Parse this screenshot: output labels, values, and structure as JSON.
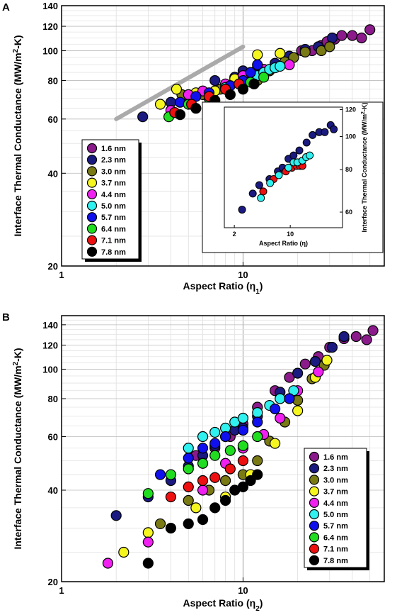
{
  "colors": {
    "1.6 nm": "#8b1a8b",
    "2.3 nm": "#1a1a80",
    "3.0 nm": "#7a7a14",
    "3.7 nm": "#f5f520",
    "4.4 nm": "#f020f0",
    "5.0 nm": "#30f0f0",
    "5.7 nm": "#1010ee",
    "6.4 nm": "#20dd20",
    "7.1 nm": "#ee1010",
    "7.8 nm": "#000000",
    "trend_line": "#aaaaaa"
  },
  "chart_data": [
    {
      "type": "scatter",
      "panel": "A",
      "xlabel": "Aspect Ratio (η",
      "xlabel_sub": "1",
      "xlabel_end": ")",
      "ylabel": "Interface Thermal Conductance (MW/m",
      "ylabel_sup": "2",
      "ylabel_end": "-K)",
      "x_scale": "log",
      "y_scale": "log",
      "xlim": [
        1,
        60
      ],
      "ylim": [
        20,
        140
      ],
      "x_ticks": [
        1,
        10
      ],
      "x_tick_labels": [
        "1",
        "10"
      ],
      "y_ticks": [
        20,
        40,
        60,
        80,
        100,
        120,
        140
      ],
      "y_tick_labels": [
        "20",
        "40",
        "60",
        "80",
        "100",
        "120",
        "140"
      ],
      "grid": true,
      "legend_position": "middle-left",
      "legend": [
        "1.6 nm",
        "2.3 nm",
        "3.0 nm",
        "3.7 nm",
        "4.4 nm",
        "5.0 nm",
        "5.7 nm",
        "6.4 nm",
        "7.1 nm",
        "7.8 nm"
      ],
      "trend_line": {
        "x": [
          2,
          10
        ],
        "y": [
          60,
          103
        ]
      },
      "series": [
        {
          "name": "1.6 nm",
          "points": [
            [
              21,
              100
            ],
            [
              24,
              100
            ],
            [
              27,
              104
            ],
            [
              29,
              107
            ],
            [
              32,
              109
            ],
            [
              35,
              112
            ],
            [
              40,
              112
            ],
            [
              45,
              110
            ],
            [
              50,
              117
            ]
          ]
        },
        {
          "name": "2.3 nm",
          "points": [
            [
              2.8,
              61
            ],
            [
              4,
              68
            ],
            [
              5,
              69
            ],
            [
              7,
              80
            ],
            [
              9,
              82
            ],
            [
              10,
              86
            ],
            [
              12,
              88
            ],
            [
              15,
              91
            ],
            [
              18,
              96
            ],
            [
              22,
              101
            ],
            [
              26,
              103
            ],
            [
              31,
              110
            ]
          ]
        },
        {
          "name": "3.0 nm",
          "points": [
            [
              4.6,
              72
            ],
            [
              6,
              72
            ],
            [
              7.5,
              75
            ],
            [
              10,
              78
            ],
            [
              12,
              80
            ],
            [
              14,
              86
            ],
            [
              17,
              92
            ],
            [
              19,
              95
            ],
            [
              22,
              99
            ],
            [
              27,
              100
            ],
            [
              30,
              103
            ]
          ]
        },
        {
          "name": "3.7 nm",
          "points": [
            [
              3.5,
              67
            ],
            [
              4.3,
              75
            ],
            [
              5.5,
              73
            ],
            [
              7,
              74
            ],
            [
              9,
              81
            ],
            [
              12,
              97
            ],
            [
              16,
              98
            ]
          ]
        },
        {
          "name": "4.4 nm",
          "points": [
            [
              4,
              64
            ],
            [
              5,
              72
            ],
            [
              6,
              74
            ],
            [
              8,
              78
            ],
            [
              10,
              83
            ],
            [
              13,
              87
            ],
            [
              18,
              90
            ]
          ]
        },
        {
          "name": "5.0 nm",
          "points": [
            [
              8,
              76
            ],
            [
              10,
              80
            ],
            [
              12,
              83
            ],
            [
              13,
              85
            ],
            [
              14,
              87
            ],
            [
              15,
              88
            ],
            [
              16,
              89
            ]
          ]
        },
        {
          "name": "5.7 nm",
          "points": [
            [
              4.5,
              68
            ],
            [
              5.5,
              71
            ],
            [
              6.5,
              73
            ],
            [
              8.5,
              77
            ],
            [
              10,
              80
            ],
            [
              11,
              85
            ],
            [
              12,
              90
            ]
          ]
        },
        {
          "name": "6.4 nm",
          "points": [
            [
              3.9,
              61
            ],
            [
              5,
              67
            ],
            [
              6.5,
              70
            ],
            [
              8,
              75
            ],
            [
              11,
              79
            ],
            [
              13,
              82
            ]
          ]
        },
        {
          "name": "7.1 nm",
          "points": [
            [
              4.2,
              63
            ],
            [
              5.2,
              67
            ],
            [
              6.5,
              71
            ],
            [
              8,
              75
            ],
            [
              9.5,
              78
            ]
          ]
        },
        {
          "name": "7.8 nm",
          "points": [
            [
              4.5,
              62
            ],
            [
              5.5,
              65
            ],
            [
              7,
              69
            ],
            [
              8.5,
              72
            ],
            [
              10,
              75
            ],
            [
              11.5,
              78
            ]
          ]
        }
      ],
      "inset": {
        "xlabel": "Aspect Ratio (η)",
        "ylabel": "Interface Thermal Conductance (MW/m",
        "ylabel_sup": "2",
        "ylabel_end": "-K)",
        "x_scale": "log",
        "y_scale": "log",
        "xlim": [
          1.5,
          45
        ],
        "ylim": [
          54,
          122
        ],
        "x_ticks": [
          2,
          10
        ],
        "x_tick_labels": [
          "2",
          "10"
        ],
        "y_ticks": [
          60,
          80,
          100,
          120
        ],
        "y_tick_labels": [
          "60",
          "80",
          "100",
          "120"
        ],
        "series": [
          {
            "name": "2.3 nm",
            "points": [
              [
                2.5,
                61
              ],
              [
                3.4,
                68
              ],
              [
                4.1,
                72
              ],
              [
                5.5,
                75
              ],
              [
                7,
                79
              ],
              [
                8,
                81
              ],
              [
                9.5,
                86
              ],
              [
                11,
                88
              ],
              [
                13,
                91
              ],
              [
                16,
                96
              ],
              [
                19,
                101
              ],
              [
                23,
                103
              ],
              [
                27,
                103
              ],
              [
                32,
                108
              ],
              [
                35,
                105
              ]
            ]
          },
          {
            "name": "7.1 nm",
            "points": [
              [
                4.6,
                69
              ],
              [
                6.2,
                75
              ],
              [
                8.8,
                79
              ],
              [
                10.5,
                81
              ],
              [
                12,
                82
              ],
              [
                13.2,
                82
              ],
              [
                14.2,
                82
              ]
            ]
          },
          {
            "name": "5.0 nm",
            "points": [
              [
                4.3,
                66
              ],
              [
                5.6,
                73
              ],
              [
                7.2,
                77
              ],
              [
                9.5,
                81
              ],
              [
                11,
                84
              ],
              [
                12.3,
                84
              ],
              [
                14.2,
                85
              ],
              [
                15.8,
                87
              ],
              [
                17.5,
                88
              ]
            ]
          }
        ]
      }
    },
    {
      "type": "scatter",
      "panel": "B",
      "xlabel": "Aspect Ratio (η",
      "xlabel_sub": "2",
      "xlabel_end": ")",
      "ylabel": "Interface Thermal Conductance (MW/m",
      "ylabel_sup": "2",
      "ylabel_end": "-K)",
      "x_scale": "log",
      "y_scale": "log",
      "xlim": [
        1,
        60
      ],
      "ylim": [
        20,
        150
      ],
      "x_ticks": [
        1,
        10
      ],
      "x_tick_labels": [
        "1",
        "10"
      ],
      "y_ticks": [
        20,
        40,
        60,
        80,
        100,
        120,
        140
      ],
      "y_tick_labels": [
        "20",
        "40",
        "60",
        "80",
        "100",
        "120",
        "140"
      ],
      "grid": true,
      "legend_position": "lower-right",
      "legend": [
        "1.6 nm",
        "2.3 nm",
        "3.0 nm",
        "3.7 nm",
        "4.4 nm",
        "5.0 nm",
        "5.7 nm",
        "6.4 nm",
        "7.1 nm",
        "7.8 nm"
      ],
      "series": [
        {
          "name": "1.6 nm",
          "points": [
            [
              5.5,
              52
            ],
            [
              7,
              55
            ],
            [
              8.5,
              60
            ],
            [
              10,
              66
            ],
            [
              12,
              75
            ],
            [
              15,
              85
            ],
            [
              18,
              94
            ],
            [
              22,
              104
            ],
            [
              26,
              110
            ],
            [
              30,
              118
            ],
            [
              36,
              126
            ],
            [
              42,
              128
            ],
            [
              48,
              125
            ],
            [
              52,
              134
            ]
          ]
        },
        {
          "name": "2.3 nm",
          "points": [
            [
              2,
              33
            ],
            [
              3,
              38
            ],
            [
              4,
              43
            ],
            [
              5,
              48
            ],
            [
              6,
              52
            ],
            [
              7,
              56
            ],
            [
              8,
              60
            ],
            [
              9,
              63
            ],
            [
              10,
              64
            ],
            [
              12,
              70
            ],
            [
              16,
              84
            ],
            [
              20,
              97
            ],
            [
              25,
              106
            ],
            [
              31,
              118
            ],
            [
              36,
              128
            ]
          ]
        },
        {
          "name": "3.0 nm",
          "points": [
            [
              3.5,
              31
            ],
            [
              5,
              37
            ],
            [
              6.5,
              40
            ],
            [
              8,
              43
            ],
            [
              10,
              45
            ],
            [
              12,
              50
            ],
            [
              14,
              58
            ],
            [
              17,
              67
            ],
            [
              20,
              79
            ],
            [
              24,
              93
            ],
            [
              28,
              103
            ]
          ]
        },
        {
          "name": "3.7 nm",
          "points": [
            [
              2.2,
              25
            ],
            [
              3,
              29
            ],
            [
              5.5,
              35
            ],
            [
              8,
              38
            ],
            [
              11,
              45
            ],
            [
              15,
              57
            ],
            [
              20,
              73
            ],
            [
              25,
              94
            ],
            [
              29,
              107
            ]
          ]
        },
        {
          "name": "4.4 nm",
          "points": [
            [
              1.8,
              23
            ],
            [
              3,
              27
            ],
            [
              6,
              40
            ],
            [
              8,
              49
            ],
            [
              10,
              55
            ],
            [
              13,
              61
            ],
            [
              16,
              69
            ],
            [
              20,
              85
            ],
            [
              26,
              98
            ]
          ]
        },
        {
          "name": "5.0 nm",
          "points": [
            [
              5,
              55
            ],
            [
              6,
              60
            ],
            [
              7,
              62
            ],
            [
              8,
              64
            ],
            [
              9,
              67
            ],
            [
              10,
              69
            ],
            [
              12,
              72
            ],
            [
              14,
              76
            ],
            [
              16,
              80
            ],
            [
              19,
              85
            ]
          ]
        },
        {
          "name": "5.7 nm",
          "points": [
            [
              3.5,
              45
            ],
            [
              5,
              51
            ],
            [
              6,
              55
            ],
            [
              7,
              57
            ],
            [
              8,
              60
            ],
            [
              10,
              63
            ],
            [
              12,
              67
            ],
            [
              15,
              74
            ],
            [
              18,
              80
            ]
          ]
        },
        {
          "name": "6.4 nm",
          "points": [
            [
              3,
              39
            ],
            [
              4,
              45
            ],
            [
              5,
              47
            ],
            [
              6,
              49
            ],
            [
              7,
              52
            ],
            [
              8.5,
              54
            ],
            [
              10,
              56
            ],
            [
              12,
              60
            ]
          ]
        },
        {
          "name": "7.1 nm",
          "points": [
            [
              4,
              38
            ],
            [
              5,
              41
            ],
            [
              6,
              43
            ],
            [
              7,
              44
            ],
            [
              8.5,
              47
            ],
            [
              10,
              50
            ]
          ]
        },
        {
          "name": "7.8 nm",
          "points": [
            [
              3,
              23
            ],
            [
              4,
              30
            ],
            [
              5,
              31
            ],
            [
              6,
              32
            ],
            [
              7,
              35
            ],
            [
              8,
              37
            ],
            [
              9,
              40
            ],
            [
              10,
              41
            ],
            [
              11,
              43
            ],
            [
              12,
              45
            ]
          ]
        }
      ]
    }
  ]
}
